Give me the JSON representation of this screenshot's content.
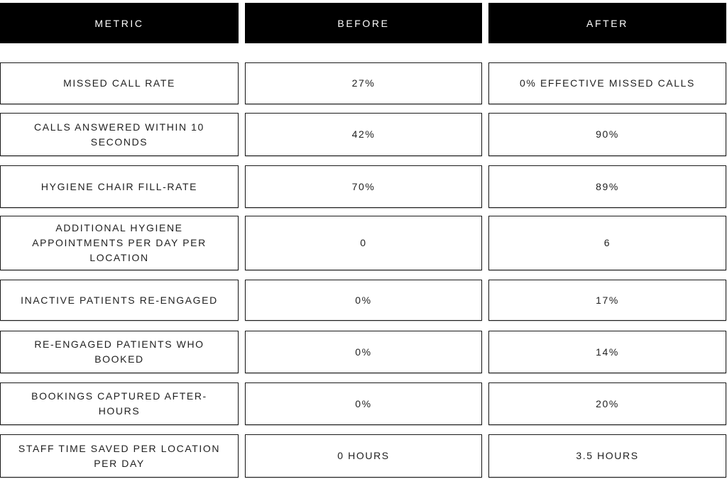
{
  "title": "Before and after metrics comparison table",
  "colors": {
    "header_bg": "#000000",
    "header_text": "#ffffff",
    "cell_bg": "#ffffff",
    "border": "#1a1a1a",
    "text": "#1f1f1f"
  },
  "chart_data": {
    "type": "table",
    "columns": [
      "METRIC",
      "BEFORE",
      "AFTER"
    ],
    "rows": [
      [
        "MISSED CALL RATE",
        "27%",
        "0% EFFECTIVE MISSED CALLS"
      ],
      [
        "CALLS ANSWERED WITHIN 10 SECONDS",
        "42%",
        "90%"
      ],
      [
        "HYGIENE CHAIR FILL-RATE",
        "70%",
        "89%"
      ],
      [
        "ADDITIONAL HYGIENE APPOINTMENTS PER DAY PER LOCATION",
        "0",
        "6"
      ],
      [
        "INACTIVE PATIENTS RE-ENGAGED",
        "0%",
        "17%"
      ],
      [
        "RE-ENGAGED PATIENTS WHO BOOKED",
        "0%",
        "14%"
      ],
      [
        "BOOKINGS CAPTURED AFTER-HOURS",
        "0%",
        "20%"
      ],
      [
        "STAFF TIME SAVED PER LOCATION PER DAY",
        "0 HOURS",
        "3.5 HOURS"
      ]
    ]
  }
}
